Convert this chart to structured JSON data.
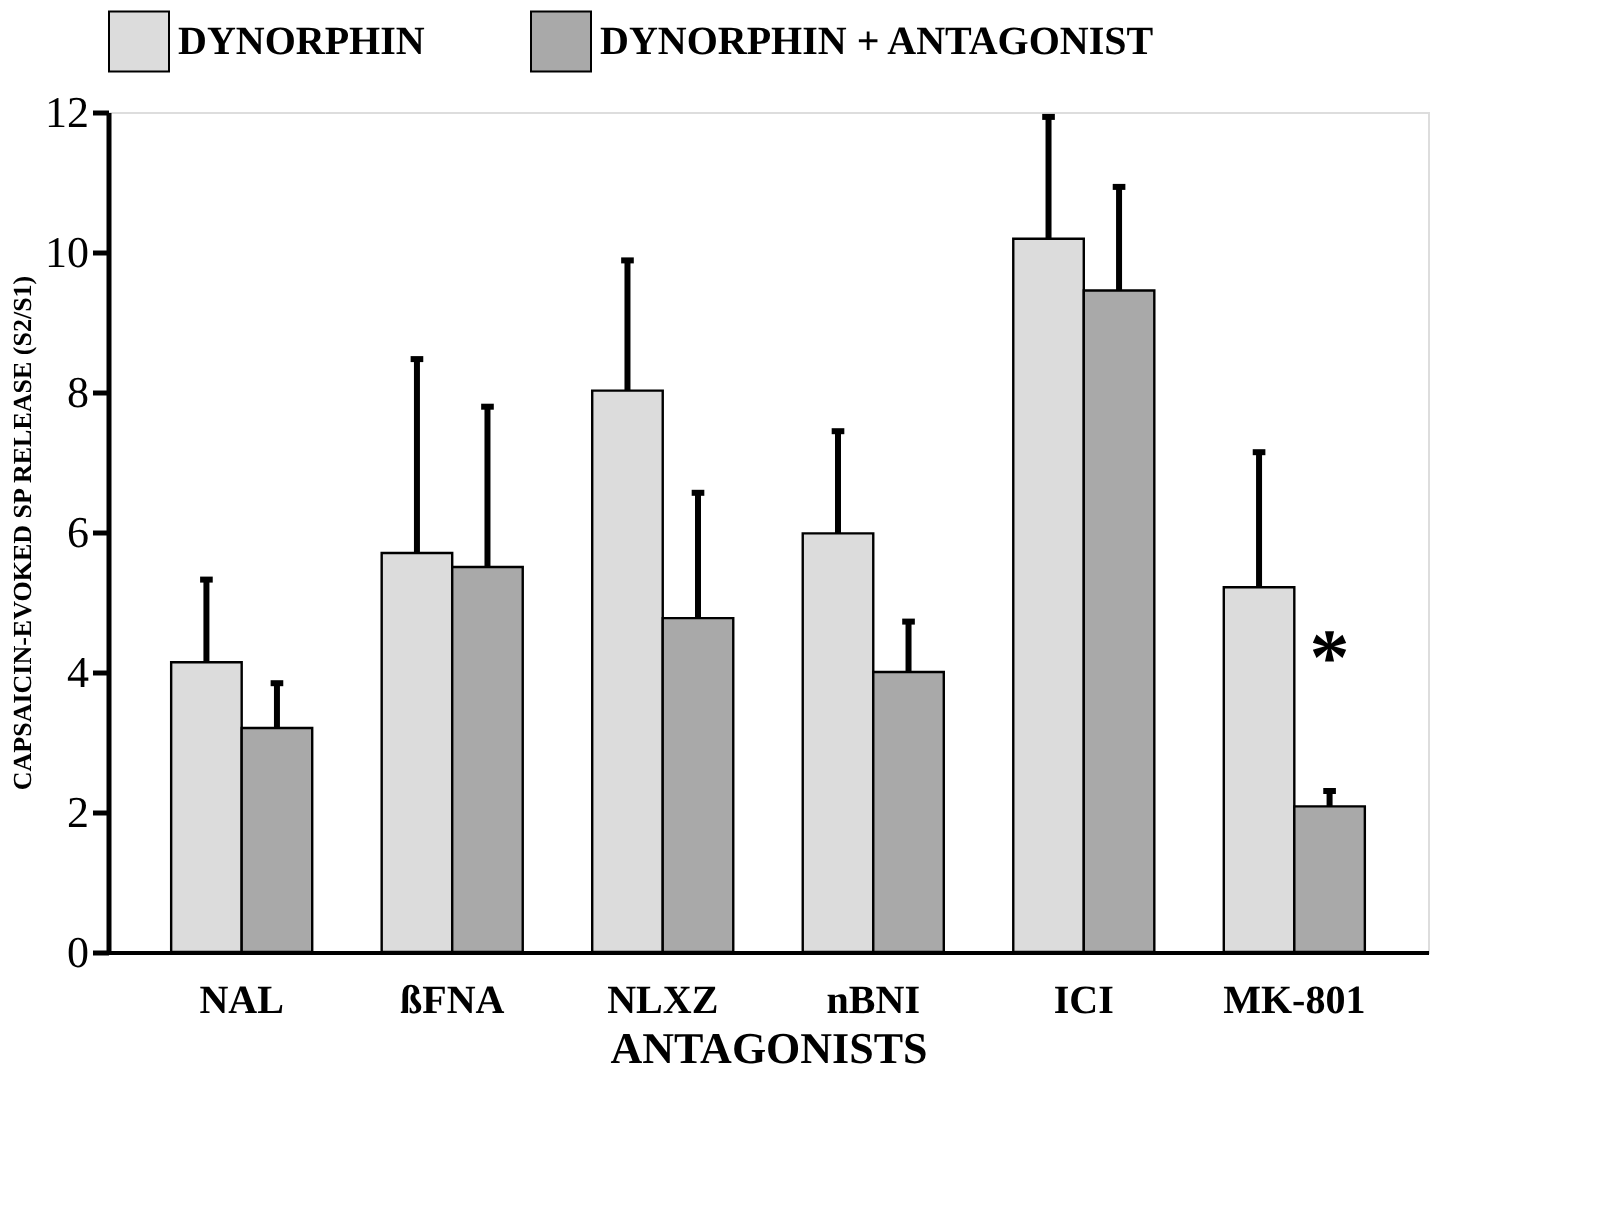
{
  "chart_data": {
    "type": "bar",
    "xlabel": "ANTAGONISTS",
    "ylabel": "CAPSAICIN-EVOKED SP RELEASE (S2/S1)",
    "categories": [
      "NAL",
      "ßFNA",
      "NLXZ",
      "nBNI",
      "ICI",
      "MK-801"
    ],
    "series": [
      {
        "name": "DYNORPHIN",
        "color": "#dcdcdc",
        "values": [
          4.14,
          5.7,
          8.02,
          5.98,
          10.19,
          5.21
        ],
        "errors": [
          [
            4.14,
            5.32
          ],
          [
            5.7,
            8.47
          ],
          [
            8.02,
            9.88
          ],
          [
            5.98,
            7.44
          ],
          [
            10.19,
            11.93
          ],
          [
            5.21,
            7.14
          ]
        ]
      },
      {
        "name": "DYNORPHIN + ANTAGONIST",
        "color": "#a9a9a9",
        "values": [
          3.2,
          5.5,
          4.77,
          4.0,
          9.45,
          2.08
        ],
        "errors": [
          [
            3.2,
            3.84
          ],
          [
            5.5,
            7.79
          ],
          [
            4.77,
            6.56
          ],
          [
            4.0,
            4.72
          ],
          [
            9.45,
            10.93
          ],
          [
            2.08,
            2.3
          ]
        ]
      }
    ],
    "ylim": [
      0,
      12
    ],
    "yticks": [
      0,
      2,
      4,
      6,
      8,
      10,
      12
    ],
    "grid": false,
    "legend": "top",
    "annotations": [
      {
        "text": "*",
        "x": "MK-801",
        "y": 4.4
      }
    ]
  }
}
